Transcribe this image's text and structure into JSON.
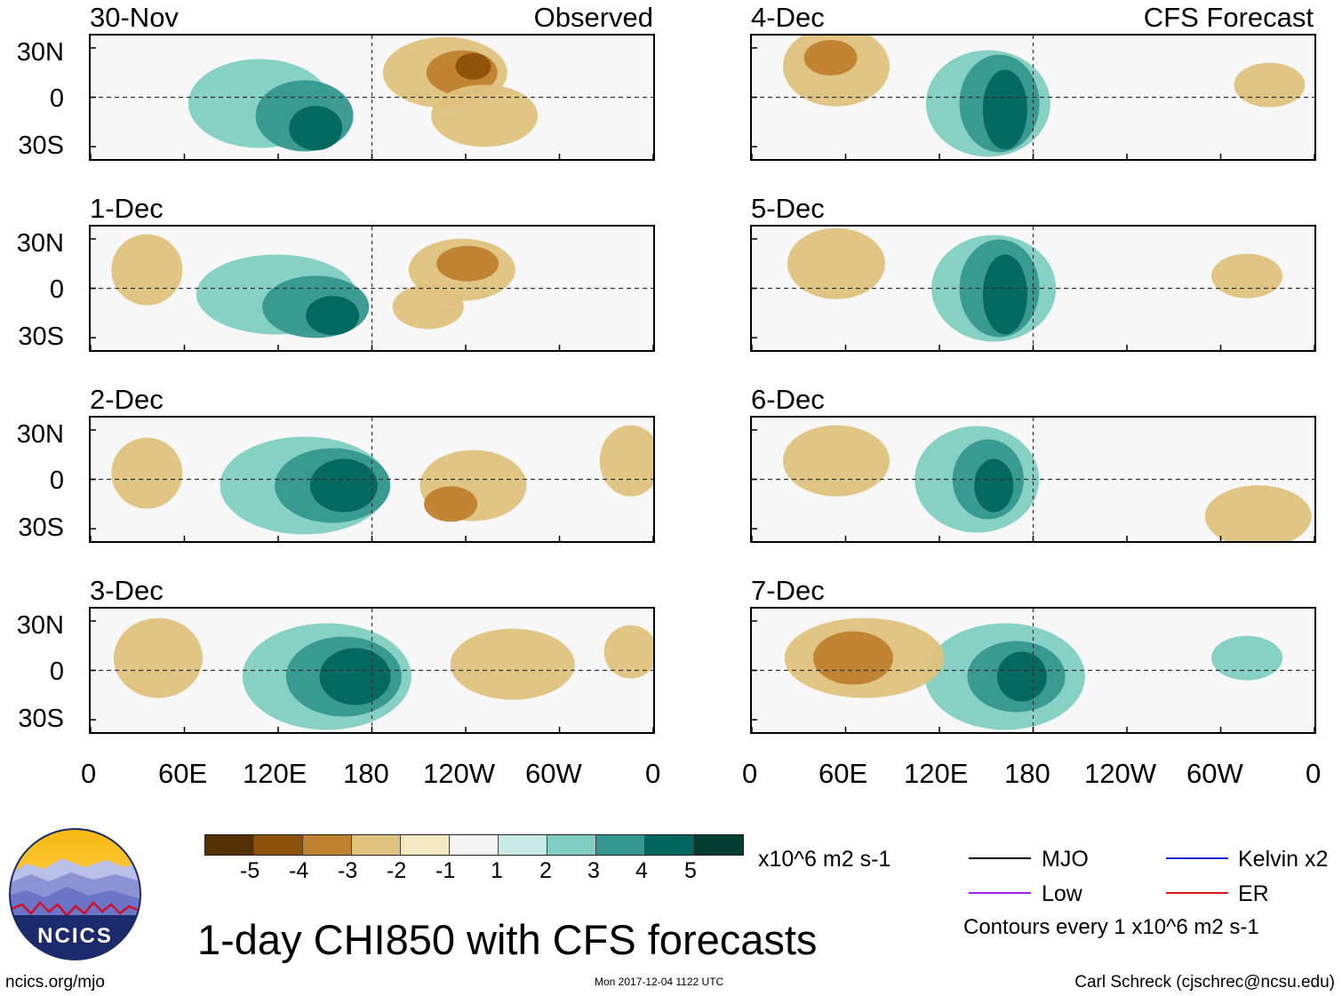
{
  "panels": [
    {
      "date": "30-Nov",
      "kind": "Observed"
    },
    {
      "date": "1-Dec",
      "kind": ""
    },
    {
      "date": "2-Dec",
      "kind": ""
    },
    {
      "date": "3-Dec",
      "kind": ""
    },
    {
      "date": "4-Dec",
      "kind": "CFS Forecast"
    },
    {
      "date": "5-Dec",
      "kind": ""
    },
    {
      "date": "6-Dec",
      "kind": ""
    },
    {
      "date": "7-Dec",
      "kind": ""
    }
  ],
  "axes": {
    "lat_labels": [
      "30N",
      "0",
      "30S"
    ],
    "lon_labels": [
      "0",
      "60E",
      "120E",
      "180",
      "120W",
      "60W",
      "0"
    ]
  },
  "colorbar": {
    "labels": [
      "-5",
      "-4",
      "-3",
      "-2",
      "-1",
      "1",
      "2",
      "3",
      "4",
      "5"
    ],
    "units": "x10^6 m2 s-1",
    "colors": [
      "#543005",
      "#8c510a",
      "#bf812d",
      "#dfc27d",
      "#f6e8c3",
      "#f5f5f5",
      "#c7eae5",
      "#80cdc1",
      "#35978f",
      "#01665e",
      "#003c30"
    ]
  },
  "legend": {
    "items": [
      {
        "label": "MJO",
        "color": "#000000"
      },
      {
        "label": "Kelvin x2",
        "color": "#1a2bd6"
      },
      {
        "label": "Low",
        "color": "#a020f0"
      },
      {
        "label": "ER",
        "color": "#d61a1a"
      }
    ],
    "note": "Contours every 1 x10^6 m2 s-1"
  },
  "title": "1-day CHI850 with CFS forecasts",
  "logo_text": "NCICS",
  "footer": {
    "url": "ncics.org/mjo",
    "timestamp": "Mon 2017-12-04 1122 UTC",
    "credit": "Carl Schreck (cjschrec@ncsu.edu)"
  }
}
